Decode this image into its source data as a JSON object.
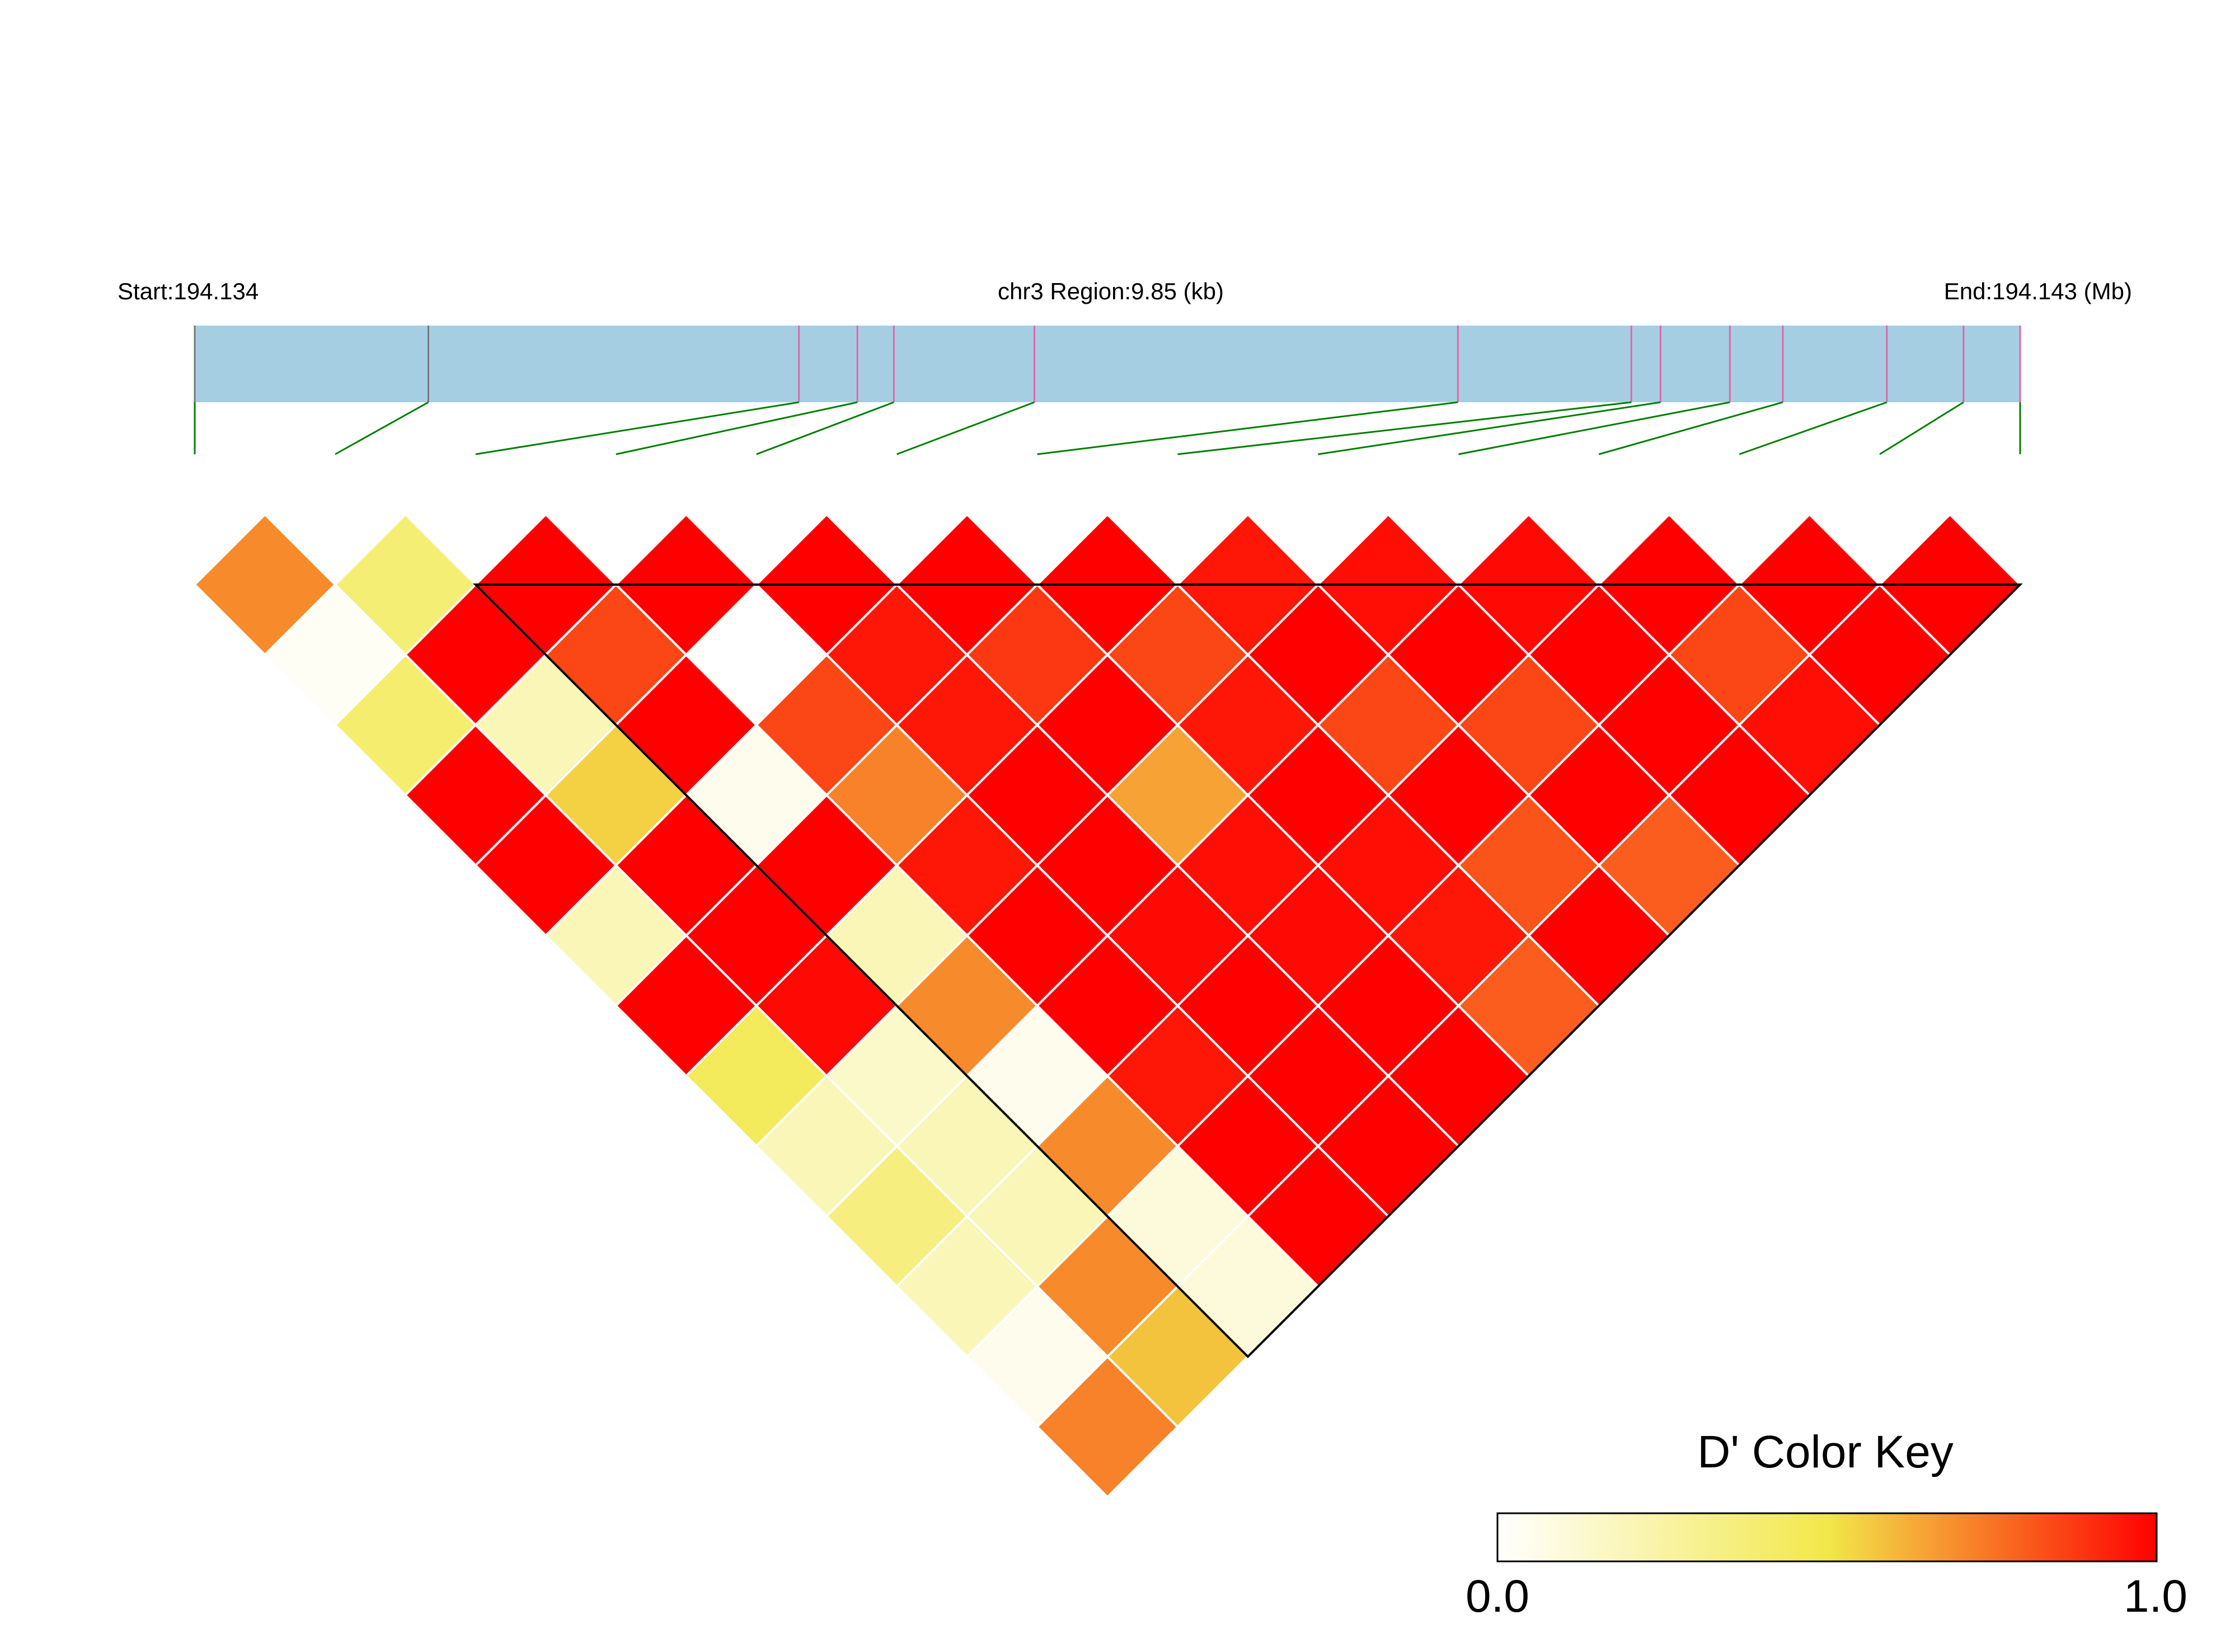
{
  "chart_data": {
    "type": "heatmap",
    "title": "",
    "region_label": "chr3 Region:9.85 (kb)",
    "start_label": "Start:194.134",
    "end_label": "End:194.143 (Mb)",
    "start_mb": 194.134,
    "end_mb": 194.143,
    "region_kb": 9.85,
    "snp_positions_fraction": [
      0.0,
      0.128,
      0.331,
      0.363,
      0.383,
      0.46,
      0.692,
      0.787,
      0.803,
      0.841,
      0.87,
      0.927,
      0.969,
      1.0
    ],
    "colormap": {
      "low_color": "#ffffff",
      "mid_color": "#f2e84a",
      "high_color": "#ff0000",
      "min": 0.0,
      "max": 1.0
    },
    "ld_matrix_D_prime": [
      [
        null,
        0.7,
        0.03,
        0.4,
        1.0,
        1.0,
        0.2,
        1.0,
        0.45,
        0.2,
        0.35,
        0.2,
        0.05,
        0.72
      ],
      [
        0.7,
        null,
        0.38,
        1.0,
        0.2,
        0.55,
        1.0,
        1.0,
        0.98,
        0.15,
        0.2,
        0.2,
        0.7,
        0.58
      ],
      [
        0.03,
        0.38,
        null,
        1.0,
        0.85,
        1.0,
        0.05,
        1.0,
        0.2,
        0.7,
        0.05,
        0.7,
        0.1,
        0.1
      ],
      [
        0.4,
        1.0,
        1.0,
        null,
        1.0,
        0.0,
        0.85,
        0.72,
        0.95,
        1.0,
        1.0,
        0.95,
        1.0,
        1.0
      ],
      [
        1.0,
        0.2,
        0.85,
        1.0,
        null,
        1.0,
        0.95,
        0.95,
        1.0,
        1.0,
        0.98,
        1.0,
        1.0,
        1.0
      ],
      [
        1.0,
        0.55,
        1.0,
        0.0,
        1.0,
        null,
        1.0,
        0.88,
        1.0,
        0.65,
        0.97,
        0.98,
        1.0,
        1.0
      ],
      [
        0.2,
        1.0,
        0.05,
        0.85,
        0.95,
        1.0,
        null,
        1.0,
        0.85,
        0.95,
        1.0,
        0.97,
        0.95,
        0.8
      ],
      [
        1.0,
        1.0,
        1.0,
        0.72,
        0.95,
        0.88,
        1.0,
        null,
        0.95,
        1.0,
        0.85,
        1.0,
        0.82,
        1.0
      ],
      [
        0.45,
        0.98,
        0.2,
        0.95,
        1.0,
        1.0,
        0.85,
        0.95,
        null,
        0.97,
        1.0,
        0.85,
        1.0,
        0.8
      ],
      [
        0.2,
        0.15,
        0.7,
        1.0,
        1.0,
        0.65,
        0.95,
        1.0,
        0.97,
        null,
        0.98,
        1.0,
        1.0,
        1.0
      ],
      [
        0.35,
        0.2,
        0.05,
        1.0,
        0.98,
        0.97,
        1.0,
        0.85,
        1.0,
        0.98,
        null,
        1.0,
        0.85,
        0.97
      ],
      [
        0.2,
        0.2,
        0.7,
        0.95,
        1.0,
        0.98,
        0.97,
        1.0,
        0.85,
        1.0,
        1.0,
        null,
        1.0,
        1.0
      ],
      [
        0.05,
        0.7,
        0.1,
        1.0,
        1.0,
        1.0,
        0.95,
        0.82,
        1.0,
        1.0,
        0.85,
        1.0,
        null,
        1.0
      ],
      [
        0.72,
        0.58,
        0.1,
        1.0,
        1.0,
        1.0,
        0.8,
        1.0,
        0.8,
        1.0,
        0.97,
        1.0,
        1.0,
        null
      ]
    ],
    "block": {
      "first_snp": 2,
      "last_snp": 13
    },
    "legend": {
      "title": "D' Color Key",
      "min_label": "0.0",
      "max_label": "1.0",
      "placement": "bottom-right"
    }
  },
  "colors": {
    "gene_bar": "#a6cee3",
    "snp_tick": "#e066a8",
    "connector": "#007f00",
    "cell_border": "#ffffff",
    "block_outline": "#000000"
  }
}
